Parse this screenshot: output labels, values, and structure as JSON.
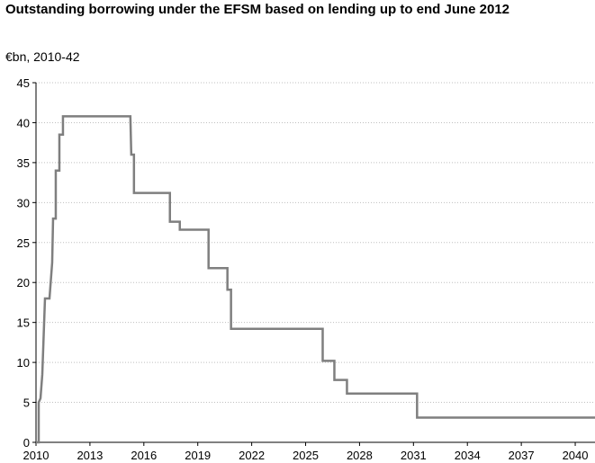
{
  "chart_data": {
    "type": "line",
    "title": "Outstanding borrowing under the EFSM based on lending up to end June 2012",
    "subtitle": "€bn, 2010-42",
    "xlabel": "",
    "ylabel": "",
    "xlim": [
      2010,
      2041.1
    ],
    "ylim": [
      0,
      45
    ],
    "x_ticks": [
      "2010",
      "2013",
      "2016",
      "2019",
      "2022",
      "2025",
      "2028",
      "2031",
      "2034",
      "2037",
      "2040"
    ],
    "y_ticks": [
      "0",
      "5",
      "10",
      "15",
      "20",
      "25",
      "30",
      "35",
      "40",
      "45"
    ],
    "grid": "horizontal-dotted",
    "legend": "none",
    "color": "#7f7f7f",
    "series": [
      {
        "x": [
          2010.0,
          2010.15,
          2010.15,
          2010.25,
          2010.35,
          2010.35,
          2010.5,
          2010.5,
          2010.75,
          2010.9,
          2010.95,
          2011.1,
          2011.1,
          2011.3,
          2011.3,
          2011.5,
          2011.5,
          2011.7,
          2011.7,
          2015.25,
          2015.3,
          2015.45,
          2015.45,
          2015.55,
          2015.55,
          2017.45,
          2017.45,
          2018.0,
          2018.0,
          2019.6,
          2019.6,
          2020.65,
          2020.65,
          2020.85,
          2020.85,
          2025.95,
          2025.95,
          2026.6,
          2026.6,
          2027.3,
          2027.3,
          2031.2,
          2031.2,
          2041.1
        ],
        "y": [
          0,
          0,
          5,
          5.5,
          8.5,
          8.5,
          18,
          18,
          18,
          22.5,
          28,
          28,
          34,
          34,
          38.5,
          38.5,
          40.8,
          40.8,
          40.8,
          40.8,
          36,
          36,
          31.2,
          31.2,
          31.2,
          31.2,
          27.6,
          27.6,
          26.6,
          26.6,
          21.8,
          21.8,
          19.1,
          19.1,
          14.2,
          14.2,
          10.2,
          10.2,
          7.8,
          7.8,
          6.1,
          6.1,
          3.1,
          3.1
        ]
      }
    ]
  }
}
